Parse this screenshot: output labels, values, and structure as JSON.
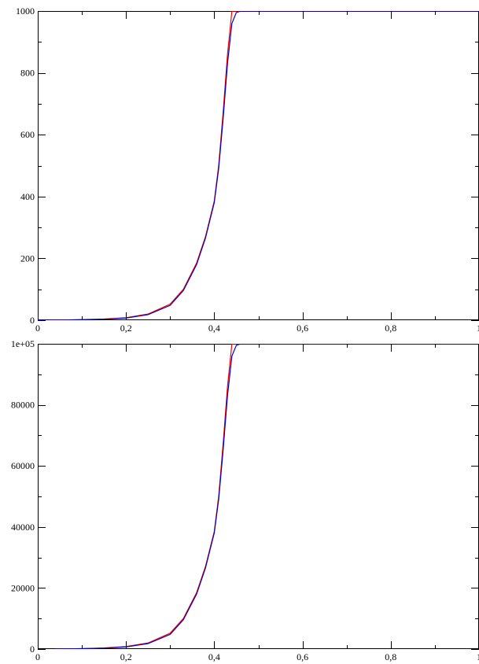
{
  "chart_data": [
    {
      "type": "line",
      "title": "",
      "xlabel": "",
      "ylabel": "",
      "xlim": [
        0,
        1
      ],
      "ylim": [
        0,
        1000
      ],
      "grid": false,
      "x_ticks": [
        0,
        0.2,
        0.4,
        0.6,
        0.8,
        1
      ],
      "x_tick_labels": [
        "0",
        "0,2",
        "0,4",
        "0,6",
        "0,8",
        "1"
      ],
      "y_ticks": [
        0,
        200,
        400,
        600,
        800,
        1000
      ],
      "y_tick_labels": [
        "0",
        "200",
        "400",
        "600",
        "800",
        "1000"
      ],
      "series": [
        {
          "color": "#ff0000",
          "x": [
            0.0,
            0.05,
            0.1,
            0.15,
            0.2,
            0.25,
            0.3,
            0.33,
            0.36,
            0.38,
            0.4,
            0.41,
            0.42,
            0.43,
            0.44,
            0.45,
            0.5,
            0.6,
            0.7,
            0.8,
            0.9,
            1.0
          ],
          "y": [
            0,
            0.5,
            2,
            4,
            8,
            20,
            52,
            100,
            185,
            270,
            385,
            500,
            670,
            860,
            1000,
            1000,
            1000,
            1000,
            1000,
            1000,
            1000,
            1000
          ]
        },
        {
          "color": "#0000cc",
          "x": [
            0.0,
            0.05,
            0.1,
            0.15,
            0.2,
            0.25,
            0.3,
            0.33,
            0.36,
            0.38,
            0.4,
            0.41,
            0.42,
            0.43,
            0.44,
            0.45,
            0.46,
            0.5,
            0.6,
            0.7,
            0.8,
            0.9,
            1.0
          ],
          "y": [
            0,
            0.5,
            1.5,
            3,
            7,
            18,
            48,
            96,
            180,
            265,
            380,
            490,
            650,
            830,
            960,
            995,
            1000,
            1000,
            1000,
            1000,
            1000,
            1000,
            1000
          ]
        }
      ]
    },
    {
      "type": "line",
      "title": "",
      "xlabel": "",
      "ylabel": "",
      "xlim": [
        0,
        1
      ],
      "ylim": [
        0,
        100000
      ],
      "grid": false,
      "x_ticks": [
        0,
        0.2,
        0.4,
        0.6,
        0.8,
        1
      ],
      "x_tick_labels": [
        "0",
        "0,2",
        "0,4",
        "0,6",
        "0,8",
        "1"
      ],
      "y_ticks": [
        0,
        20000,
        40000,
        60000,
        80000,
        100000
      ],
      "y_tick_labels": [
        "0",
        "20000",
        "40000",
        "60000",
        "80000",
        "1e+05"
      ],
      "series": [
        {
          "color": "#ff0000",
          "x": [
            0.04,
            0.1,
            0.15,
            0.2,
            0.25,
            0.3,
            0.33,
            0.36,
            0.38,
            0.4,
            0.41,
            0.42,
            0.43,
            0.44,
            0.45,
            0.5,
            0.6,
            0.7,
            0.8,
            0.9,
            1.0
          ],
          "y": [
            0,
            150,
            350,
            800,
            2000,
            5200,
            10000,
            18500,
            27000,
            38500,
            50000,
            67000,
            86000,
            100000,
            100000,
            100000,
            100000,
            100000,
            100000,
            100000,
            100000
          ]
        },
        {
          "color": "#0000cc",
          "x": [
            0.04,
            0.1,
            0.15,
            0.2,
            0.25,
            0.3,
            0.33,
            0.36,
            0.38,
            0.4,
            0.41,
            0.42,
            0.43,
            0.44,
            0.45,
            0.46,
            0.5,
            0.6,
            0.7,
            0.8,
            0.9,
            1.0
          ],
          "y": [
            0,
            120,
            300,
            700,
            1800,
            4800,
            9600,
            18000,
            26500,
            38000,
            49000,
            65000,
            83000,
            96000,
            99500,
            100000,
            100000,
            100000,
            100000,
            100000,
            100000,
            100000
          ]
        }
      ]
    }
  ]
}
